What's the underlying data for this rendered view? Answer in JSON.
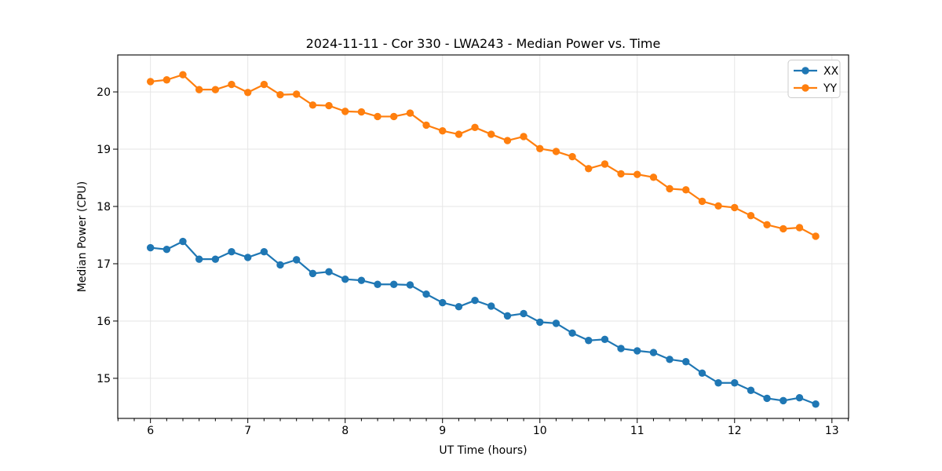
{
  "window": {
    "background": "#ffffff"
  },
  "chart_data": {
    "type": "line",
    "title": "2024-11-11 - Cor 330 - LWA243 - Median Power vs. Time",
    "xlabel": "UT Time (hours)",
    "ylabel": "Median Power (CPU)",
    "x": [
      6.0,
      6.167,
      6.333,
      6.5,
      6.667,
      6.833,
      7.0,
      7.167,
      7.333,
      7.5,
      7.667,
      7.833,
      8.0,
      8.167,
      8.333,
      8.5,
      8.667,
      8.833,
      9.0,
      9.167,
      9.333,
      9.5,
      9.667,
      9.833,
      10.0,
      10.167,
      10.333,
      10.5,
      10.667,
      10.833,
      11.0,
      11.167,
      11.333,
      11.5,
      11.667,
      11.833,
      12.0,
      12.167,
      12.333,
      12.5,
      12.667,
      12.833
    ],
    "series": [
      {
        "name": "XX",
        "color": "#1f77b4",
        "values": [
          17.28,
          17.25,
          17.39,
          17.08,
          17.08,
          17.21,
          17.11,
          17.21,
          16.98,
          17.07,
          16.83,
          16.86,
          16.73,
          16.71,
          16.64,
          16.64,
          16.63,
          16.47,
          16.32,
          16.25,
          16.36,
          16.26,
          16.09,
          16.13,
          15.98,
          15.96,
          15.79,
          15.66,
          15.68,
          15.52,
          15.48,
          15.45,
          15.33,
          15.29,
          15.09,
          14.92,
          14.92,
          14.79,
          14.65,
          14.61,
          14.66,
          14.55
        ]
      },
      {
        "name": "YY",
        "color": "#ff7f0e",
        "values": [
          20.18,
          20.21,
          20.3,
          20.04,
          20.04,
          20.13,
          19.99,
          20.13,
          19.95,
          19.96,
          19.77,
          19.76,
          19.66,
          19.65,
          19.57,
          19.57,
          19.63,
          19.42,
          19.32,
          19.26,
          19.38,
          19.26,
          19.15,
          19.22,
          19.01,
          18.96,
          18.87,
          18.66,
          18.74,
          18.57,
          18.56,
          18.51,
          18.31,
          18.29,
          18.09,
          18.01,
          17.98,
          17.84,
          17.68,
          17.61,
          17.63,
          17.48
        ]
      }
    ],
    "xlim": [
      5.664,
      13.171
    ],
    "ylim": [
      14.3,
      20.645
    ],
    "xticks": [
      6,
      7,
      8,
      9,
      10,
      11,
      12,
      13
    ],
    "yticks": [
      15,
      16,
      17,
      18,
      19,
      20
    ],
    "x_minor_divisions": 6,
    "grid": true,
    "legend": {
      "position": "upper right",
      "entries": [
        "XX",
        "YY"
      ]
    },
    "colors": {
      "grid": "#e6e6e6",
      "text": "#000000",
      "legend_border": "#cccccc"
    }
  }
}
